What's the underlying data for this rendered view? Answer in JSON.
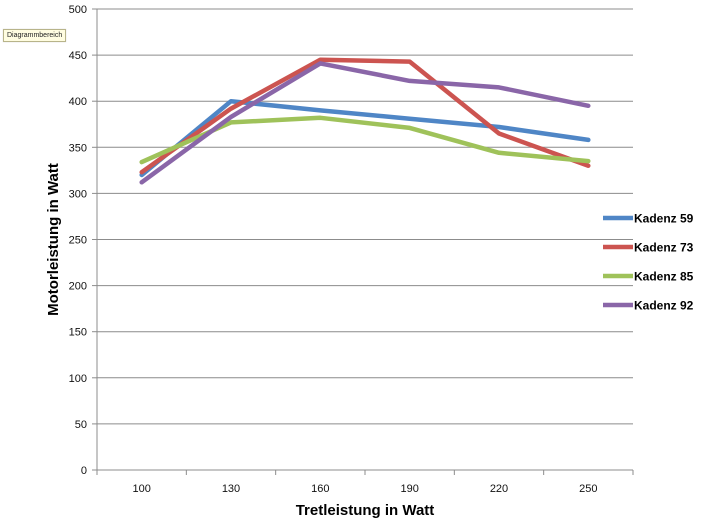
{
  "tooltip": {
    "text": "Diagrammbereich"
  },
  "chart_data": {
    "type": "line",
    "title": "",
    "xlabel": "Tretleistung in Watt",
    "ylabel": "Motorleistung in Watt",
    "categories": [
      "100",
      "130",
      "160",
      "190",
      "220",
      "250"
    ],
    "ylim": [
      0,
      500
    ],
    "yticks": [
      0,
      50,
      100,
      150,
      200,
      250,
      300,
      350,
      400,
      450,
      500
    ],
    "grid": true,
    "legend_position": "right",
    "series": [
      {
        "name": "Kadenz 59",
        "color": "#4f86c6",
        "values": [
          320,
          400,
          390,
          381,
          372,
          358
        ]
      },
      {
        "name": "Kadenz 73",
        "color": "#cc5450",
        "values": [
          323,
          392,
          445,
          443,
          365,
          330
        ]
      },
      {
        "name": "Kadenz 85",
        "color": "#9fc25a",
        "values": [
          334,
          377,
          382,
          371,
          344,
          335
        ]
      },
      {
        "name": "Kadenz 92",
        "color": "#8a66a8",
        "values": [
          312,
          383,
          441,
          422,
          415,
          395
        ]
      }
    ]
  }
}
